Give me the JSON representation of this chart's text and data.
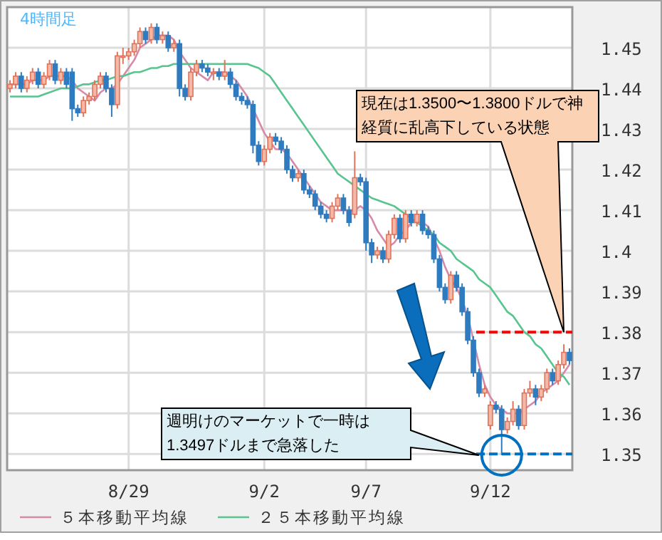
{
  "chart_data": {
    "type": "candlestick",
    "title": "4時間足",
    "categories": [
      null,
      null,
      null,
      null,
      null,
      null,
      null,
      null,
      null,
      null,
      null,
      null,
      null,
      null,
      null,
      null,
      null,
      null,
      null,
      null,
      null,
      "8/29",
      null,
      null,
      null,
      null,
      null,
      null,
      null,
      null,
      null,
      null,
      null,
      null,
      null,
      null,
      null,
      null,
      null,
      null,
      null,
      null,
      null,
      null,
      null,
      "9/2",
      null,
      null,
      null,
      null,
      null,
      null,
      null,
      null,
      null,
      null,
      null,
      null,
      null,
      null,
      null,
      null,
      null,
      "9/7",
      null,
      null,
      null,
      null,
      null,
      null,
      null,
      null,
      null,
      null,
      null,
      null,
      null,
      null,
      null,
      null,
      null,
      null,
      null,
      null,
      null,
      "9/12",
      null,
      null,
      null,
      null,
      null,
      null,
      null,
      null,
      null,
      null,
      null,
      null,
      null,
      null
    ],
    "ohlc": [
      [
        1.44,
        1.442,
        1.439,
        1.441
      ],
      [
        1.441,
        1.444,
        1.44,
        1.443
      ],
      [
        1.443,
        1.444,
        1.439,
        1.44
      ],
      [
        1.44,
        1.443,
        1.439,
        1.442
      ],
      [
        1.442,
        1.445,
        1.441,
        1.444
      ],
      [
        1.444,
        1.445,
        1.44,
        1.441
      ],
      [
        1.441,
        1.444,
        1.44,
        1.443
      ],
      [
        1.443,
        1.447,
        1.442,
        1.446
      ],
      [
        1.446,
        1.447,
        1.441,
        1.442
      ],
      [
        1.442,
        1.445,
        1.441,
        1.444
      ],
      [
        1.444,
        1.445,
        1.44,
        1.441
      ],
      [
        1.444,
        1.445,
        1.432,
        1.435
      ],
      [
        1.435,
        1.436,
        1.433,
        1.434
      ],
      [
        1.434,
        1.438,
        1.433,
        1.437
      ],
      [
        1.437,
        1.439,
        1.436,
        1.438
      ],
      [
        1.438,
        1.442,
        1.437,
        1.441
      ],
      [
        1.441,
        1.444,
        1.44,
        1.443
      ],
      [
        1.443,
        1.444,
        1.439,
        1.44
      ],
      [
        1.44,
        1.441,
        1.433,
        1.436
      ],
      [
        1.436,
        1.449,
        1.435,
        1.448
      ],
      [
        1.448,
        1.45,
        1.446,
        1.448
      ],
      [
        1.448,
        1.45,
        1.447,
        1.449
      ],
      [
        1.449,
        1.452,
        1.448,
        1.451
      ],
      [
        1.451,
        1.455,
        1.45,
        1.454
      ],
      [
        1.454,
        1.455,
        1.451,
        1.452
      ],
      [
        1.452,
        1.456,
        1.451,
        1.455
      ],
      [
        1.455,
        1.456,
        1.451,
        1.452
      ],
      [
        1.452,
        1.454,
        1.451,
        1.453
      ],
      [
        1.453,
        1.454,
        1.449,
        1.45
      ],
      [
        1.45,
        1.452,
        1.449,
        1.451
      ],
      [
        1.451,
        1.452,
        1.438,
        1.44
      ],
      [
        1.44,
        1.441,
        1.437,
        1.438
      ],
      [
        1.438,
        1.445,
        1.437,
        1.444
      ],
      [
        1.444,
        1.447,
        1.443,
        1.446
      ],
      [
        1.446,
        1.447,
        1.444,
        1.445
      ],
      [
        1.445,
        1.446,
        1.443,
        1.444
      ],
      [
        1.444,
        1.445,
        1.442,
        1.444
      ],
      [
        1.444,
        1.445,
        1.442,
        1.443
      ],
      [
        1.443,
        1.447,
        1.442,
        1.444
      ],
      [
        1.444,
        1.445,
        1.44,
        1.441
      ],
      [
        1.441,
        1.442,
        1.437,
        1.438
      ],
      [
        1.438,
        1.439,
        1.436,
        1.437
      ],
      [
        1.437,
        1.438,
        1.435,
        1.436
      ],
      [
        1.436,
        1.437,
        1.424,
        1.426
      ],
      [
        1.426,
        1.427,
        1.421,
        1.422
      ],
      [
        1.422,
        1.426,
        1.421,
        1.425
      ],
      [
        1.425,
        1.429,
        1.424,
        1.428
      ],
      [
        1.428,
        1.429,
        1.426,
        1.427
      ],
      [
        1.427,
        1.428,
        1.424,
        1.425
      ],
      [
        1.425,
        1.426,
        1.419,
        1.42
      ],
      [
        1.42,
        1.421,
        1.417,
        1.418
      ],
      [
        1.418,
        1.42,
        1.417,
        1.419
      ],
      [
        1.419,
        1.42,
        1.414,
        1.415
      ],
      [
        1.415,
        1.416,
        1.413,
        1.414
      ],
      [
        1.414,
        1.415,
        1.41,
        1.411
      ],
      [
        1.411,
        1.412,
        1.408,
        1.409
      ],
      [
        1.409,
        1.41,
        1.407,
        1.408
      ],
      [
        1.408,
        1.412,
        1.407,
        1.411
      ],
      [
        1.411,
        1.414,
        1.41,
        1.413
      ],
      [
        1.413,
        1.414,
        1.409,
        1.41
      ],
      [
        1.41,
        1.411,
        1.406,
        1.407
      ],
      [
        1.409,
        1.4245,
        1.408,
        1.418
      ],
      [
        1.418,
        1.419,
        1.416,
        1.417
      ],
      [
        1.417,
        1.418,
        1.4,
        1.402
      ],
      [
        1.402,
        1.403,
        1.397,
        1.399
      ],
      [
        1.399,
        1.401,
        1.398,
        1.4
      ],
      [
        1.4,
        1.401,
        1.397,
        1.398
      ],
      [
        1.398,
        1.405,
        1.397,
        1.404
      ],
      [
        1.404,
        1.409,
        1.403,
        1.408
      ],
      [
        1.408,
        1.409,
        1.402,
        1.403
      ],
      [
        1.403,
        1.41,
        1.402,
        1.409
      ],
      [
        1.409,
        1.41,
        1.406,
        1.407
      ],
      [
        1.407,
        1.41,
        1.406,
        1.409
      ],
      [
        1.409,
        1.41,
        1.404,
        1.405
      ],
      [
        1.405,
        1.406,
        1.403,
        1.404
      ],
      [
        1.404,
        1.405,
        1.397,
        1.398
      ],
      [
        1.398,
        1.399,
        1.39,
        1.391
      ],
      [
        1.391,
        1.392,
        1.387,
        1.388
      ],
      [
        1.388,
        1.395,
        1.387,
        1.394
      ],
      [
        1.394,
        1.395,
        1.39,
        1.391
      ],
      [
        1.391,
        1.392,
        1.384,
        1.385
      ],
      [
        1.385,
        1.386,
        1.377,
        1.378
      ],
      [
        1.378,
        1.379,
        1.369,
        1.37
      ],
      [
        1.37,
        1.371,
        1.364,
        1.365
      ],
      [
        1.365,
        1.367,
        1.364,
        1.366
      ],
      [
        1.357,
        1.363,
        1.356,
        1.362
      ],
      [
        1.362,
        1.363,
        1.36,
        1.361
      ],
      [
        1.361,
        1.362,
        1.3497,
        1.356
      ],
      [
        1.356,
        1.359,
        1.355,
        1.358
      ],
      [
        1.358,
        1.363,
        1.357,
        1.361
      ],
      [
        1.361,
        1.362,
        1.356,
        1.357
      ],
      [
        1.357,
        1.366,
        1.356,
        1.365
      ],
      [
        1.365,
        1.368,
        1.364,
        1.366
      ],
      [
        1.366,
        1.367,
        1.362,
        1.364
      ],
      [
        1.364,
        1.367,
        1.363,
        1.366
      ],
      [
        1.366,
        1.371,
        1.365,
        1.37
      ],
      [
        1.37,
        1.371,
        1.367,
        1.368
      ],
      [
        1.368,
        1.373,
        1.367,
        1.372
      ],
      [
        1.372,
        1.377,
        1.371,
        1.375
      ],
      [
        1.375,
        1.376,
        1.372,
        1.373
      ]
    ],
    "series": [
      {
        "name": "５本移動平均線",
        "type": "line",
        "color": "#d68aa8",
        "values": [
          1.441,
          1.441,
          1.441,
          1.441,
          1.442,
          1.442,
          1.442,
          1.443,
          1.443,
          1.443,
          1.443,
          1.442,
          1.44,
          1.439,
          1.438,
          1.437,
          1.439,
          1.44,
          1.44,
          1.441,
          1.443,
          1.445,
          1.447,
          1.45,
          1.451,
          1.452,
          1.453,
          1.453,
          1.453,
          1.452,
          1.449,
          1.447,
          1.445,
          1.444,
          1.443,
          1.442,
          1.444,
          1.444,
          1.444,
          1.443,
          1.442,
          1.44,
          1.438,
          1.435,
          1.432,
          1.429,
          1.427,
          1.425,
          1.425,
          1.424,
          1.422,
          1.42,
          1.418,
          1.416,
          1.414,
          1.412,
          1.411,
          1.41,
          1.41,
          1.41,
          1.41,
          1.41,
          1.411,
          1.41,
          1.408,
          1.405,
          1.403,
          1.401,
          1.402,
          1.404,
          1.405,
          1.407,
          1.407,
          1.407,
          1.406,
          1.403,
          1.4,
          1.396,
          1.393,
          1.391,
          1.388,
          1.384,
          1.378,
          1.372,
          1.367,
          1.364,
          1.362,
          1.361,
          1.36,
          1.36,
          1.36,
          1.361,
          1.362,
          1.363,
          1.365,
          1.366,
          1.367,
          1.368,
          1.37,
          1.372
        ]
      },
      {
        "name": "２５本移動平均線",
        "type": "line",
        "color": "#58c48e",
        "values": [
          1.438,
          1.438,
          1.438,
          1.438,
          1.438,
          1.438,
          1.4385,
          1.439,
          1.4395,
          1.44,
          1.44,
          1.44,
          1.4405,
          1.441,
          1.441,
          1.4415,
          1.442,
          1.442,
          1.4425,
          1.443,
          1.443,
          1.4435,
          1.444,
          1.444,
          1.4445,
          1.445,
          1.445,
          1.4455,
          1.4455,
          1.446,
          1.446,
          1.446,
          1.446,
          1.446,
          1.446,
          1.446,
          1.446,
          1.446,
          1.446,
          1.446,
          1.446,
          1.446,
          1.446,
          1.4455,
          1.445,
          1.444,
          1.443,
          1.441,
          1.439,
          1.437,
          1.435,
          1.433,
          1.431,
          1.429,
          1.427,
          1.425,
          1.423,
          1.421,
          1.419,
          1.418,
          1.417,
          1.416,
          1.415,
          1.414,
          1.413,
          1.4125,
          1.412,
          1.4115,
          1.411,
          1.41,
          1.409,
          1.408,
          1.407,
          1.406,
          1.405,
          1.404,
          1.402,
          1.401,
          1.4,
          1.398,
          1.397,
          1.396,
          1.395,
          1.393,
          1.392,
          1.391,
          1.389,
          1.387,
          1.385,
          1.384,
          1.382,
          1.38,
          1.379,
          1.377,
          1.376,
          1.374,
          1.372,
          1.37,
          1.369,
          1.367
        ]
      }
    ],
    "ylim": [
      1.346,
      1.46
    ],
    "yticks": [
      1.35,
      1.36,
      1.37,
      1.38,
      1.39,
      1.4,
      1.41,
      1.42,
      1.43,
      1.44,
      1.45
    ],
    "grid": true,
    "legend": "bottom",
    "ref_lines": [
      {
        "axis": "y",
        "value": 1.38,
        "color": "#ff0000",
        "line_style": "dashed"
      },
      {
        "axis": "y",
        "value": 1.35,
        "color": "#0070c0",
        "line_style": "dashed"
      }
    ],
    "annotations": [
      "現在は1.3500〜1.3800ドルで神経質に乱高下している状態",
      "週明けのマーケットで一時は1.3497ドルまで急落した"
    ]
  }
}
